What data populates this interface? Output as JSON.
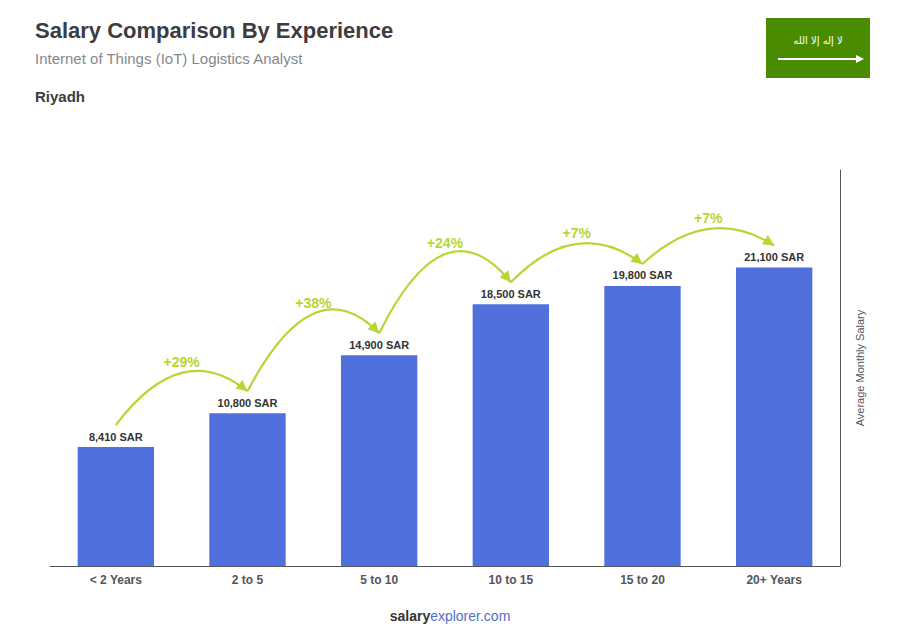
{
  "chart_data": {
    "type": "bar",
    "title": "Salary Comparison By Experience",
    "subtitle": "Internet of Things (IoT) Logistics Analyst",
    "categories": [
      "< 2 Years",
      "2 to 5",
      "5 to 10",
      "10 to 15",
      "15 to 20",
      "20+ Years"
    ],
    "values": [
      8410,
      10800,
      14900,
      18500,
      19800,
      21100
    ],
    "value_labels": [
      "8,410 SAR",
      "10,800 SAR",
      "14,900 SAR",
      "18,500 SAR",
      "19,800 SAR",
      "21,100 SAR"
    ],
    "data_labels": true,
    "ylabel": "Average Monthly Salary",
    "ylim": [
      0,
      28000
    ],
    "tick_labels": "x",
    "grid": false,
    "arrows": [
      {
        "from": "< 2 Years",
        "to": "2 to 5",
        "label": "+29%"
      },
      {
        "from": "2 to 5",
        "to": "5 to 10",
        "label": "+38%"
      },
      {
        "from": "5 to 10",
        "to": "10 to 15",
        "label": "+24%"
      },
      {
        "from": "10 to 15",
        "to": "15 to 20",
        "label": "+7%"
      },
      {
        "from": "15 to 20",
        "to": "20+ Years",
        "label": "+7%"
      }
    ],
    "annotations": {
      "location": "Riyadh",
      "footer": [
        "salary",
        "explorer.com"
      ],
      "flag": {
        "text": "لا إله إلا الله",
        "color": "#4a8c00"
      }
    }
  }
}
